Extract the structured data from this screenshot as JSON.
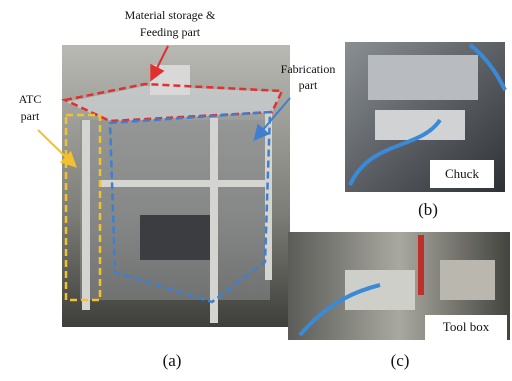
{
  "panel_a": {
    "caption": "(a)",
    "labels": {
      "material": [
        "Material storage &",
        "Feeding part"
      ],
      "fabrication": [
        "Fabrication",
        "part"
      ],
      "atc": [
        "ATC",
        "part"
      ]
    }
  },
  "panel_b": {
    "caption": "(b)",
    "tag": "Chuck"
  },
  "panel_c": {
    "caption": "(c)",
    "tag": "Tool box"
  }
}
